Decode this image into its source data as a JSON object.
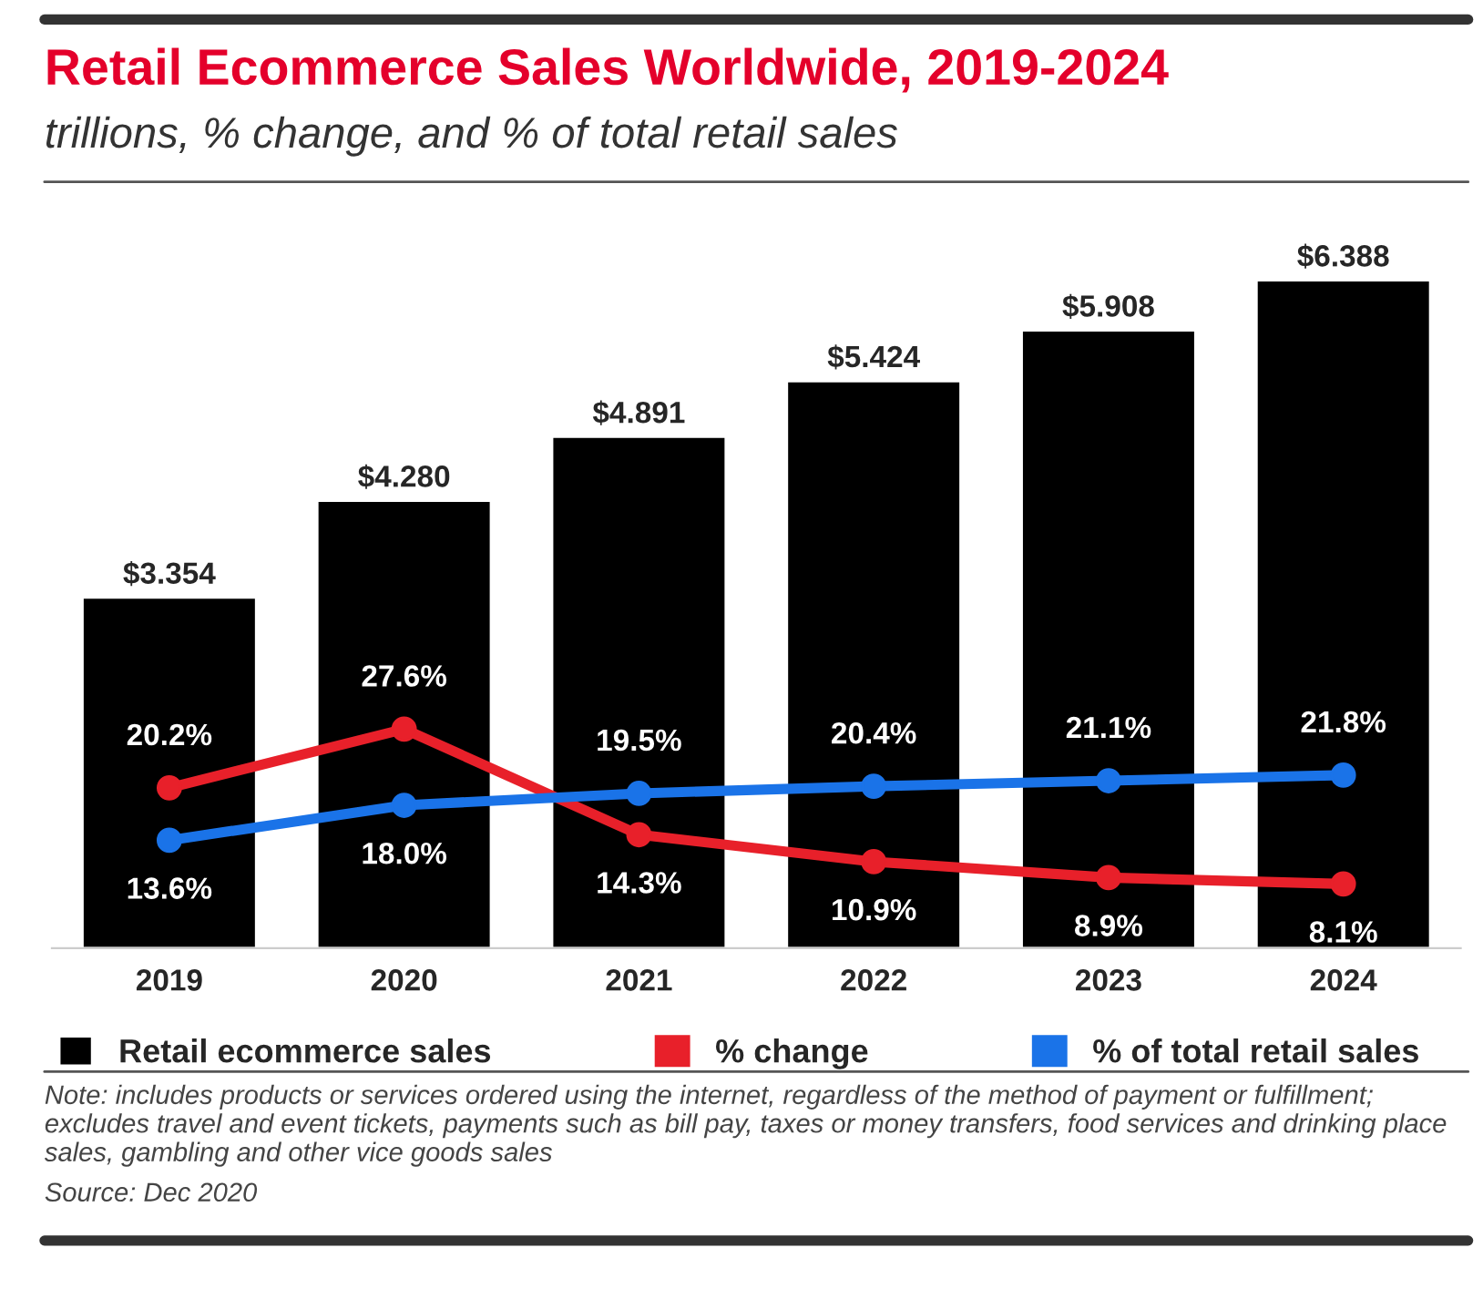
{
  "chart_data": {
    "type": "bar",
    "title": "Retail Ecommerce Sales Worldwide, 2019-2024",
    "subtitle": "trillions, % change, and % of total retail sales",
    "categories": [
      "2019",
      "2020",
      "2021",
      "2022",
      "2023",
      "2024"
    ],
    "series": [
      {
        "name": "Retail ecommerce sales",
        "color": "#000000",
        "values": [
          3.354,
          4.28,
          4.891,
          5.424,
          5.908,
          6.388
        ],
        "value_labels": [
          "$3.354",
          "$4.280",
          "$4.891",
          "$5.424",
          "$5.908",
          "$6.388"
        ]
      },
      {
        "name": "% change",
        "type": "line",
        "axis": "y2",
        "color": "#e8202a",
        "values": [
          20.2,
          27.6,
          14.3,
          10.9,
          8.9,
          8.1
        ],
        "value_labels": [
          "20.2%",
          "27.6%",
          "14.3%",
          "10.9%",
          "8.9%",
          "8.1%"
        ]
      },
      {
        "name": "% of total retail sales",
        "type": "line",
        "axis": "y2",
        "color": "#1a73e8",
        "values": [
          13.6,
          18.0,
          19.5,
          20.4,
          21.1,
          21.8
        ],
        "value_labels": [
          "13.6%",
          "18.0%",
          "19.5%",
          "20.4%",
          "21.1%",
          "21.8%"
        ]
      }
    ],
    "tick_labels": "x",
    "marker": "circle",
    "line_style": "solid",
    "grid": false,
    "legend": "bottom",
    "annotations": [
      "Note: includes products or services ordered using the internet, regardless of the method of payment or fulfillment; excludes travel and event tickets, payments such as bill pay, taxes or money transfers, food services and drinking place sales, gambling and other vice goods sales",
      "Source: Dec 2020"
    ]
  }
}
